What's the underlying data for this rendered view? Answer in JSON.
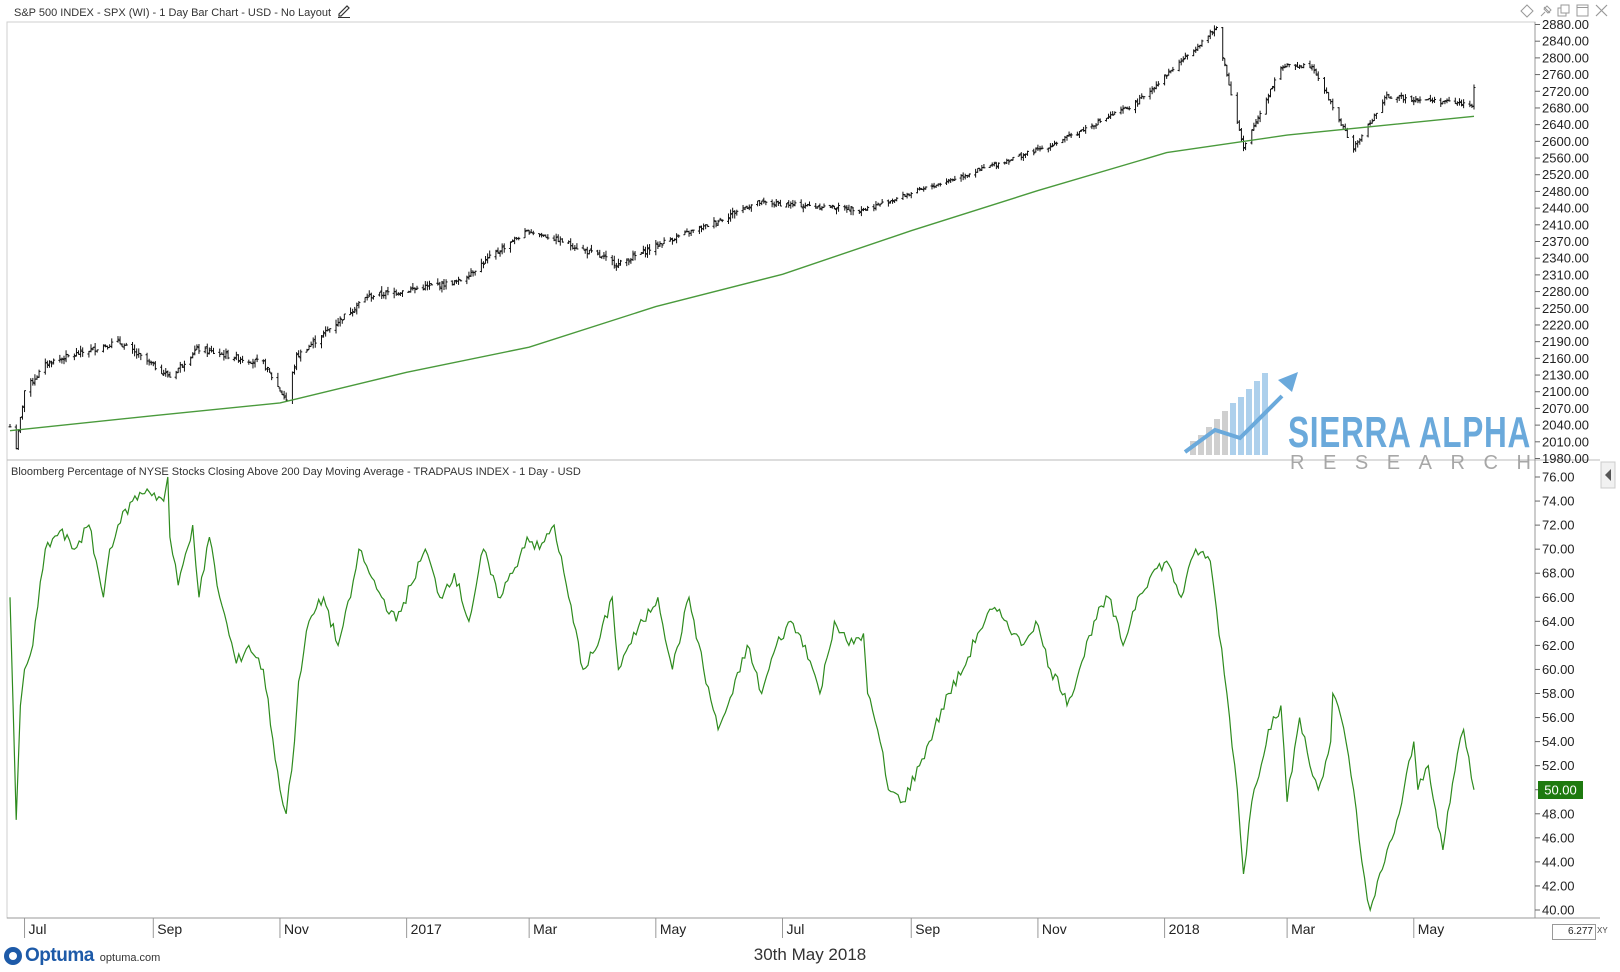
{
  "top_panel": {
    "title": "S&P 500 INDEX - SPX (WI) - 1 Day Bar Chart - USD - No Layout",
    "edit_icon": "pencil-icon"
  },
  "bottom_panel": {
    "title": "Bloomberg Percentage of NYSE Stocks Closing Above 200 Day Moving Average - TRADPAUS INDEX - 1 Day - USD",
    "last_value_label": "50.00"
  },
  "footer": {
    "date": "30th May 2018",
    "brand": "Optuma",
    "site": "optuma.com",
    "zoom_value": "6.277",
    "xy_label": "XY"
  },
  "watermark": {
    "line1": "SIERRA ALPHA",
    "line2": "RESEARCH"
  },
  "toolbar_icons": [
    "diamond-icon",
    "pin-icon",
    "restore-icon",
    "maximize-icon",
    "close-icon"
  ],
  "colors": {
    "price_bars": "#111111",
    "ma200": "#4a9a3c",
    "breadth": "#2e8b1e",
    "last_value_bg": "#1e7a0f",
    "watermark_blue": "#5aa0d8",
    "watermark_gray": "#9e9e9e"
  },
  "chart_data": [
    {
      "type": "ohlc",
      "title": "S&P 500 INDEX - SPX (WI) - 1 Day Bar Chart - USD - No Layout",
      "x_tick_labels": [
        "Jul",
        "Sep",
        "Nov",
        "2017",
        "Mar",
        "May",
        "Jul",
        "Sep",
        "Nov",
        "2018",
        "Mar",
        "May"
      ],
      "y_tick_labels": [
        "1980.00",
        "2010.00",
        "2040.00",
        "2070.00",
        "2100.00",
        "2130.00",
        "2160.00",
        "2190.00",
        "2220.00",
        "2250.00",
        "2280.00",
        "2310.00",
        "2340.00",
        "2370.00",
        "2410.00",
        "2440.00",
        "2480.00",
        "2520.00",
        "2560.00",
        "2600.00",
        "2640.00",
        "2680.00",
        "2720.00",
        "2760.00",
        "2800.00",
        "2840.00",
        "2880.00"
      ],
      "ylim": [
        1980,
        2880
      ],
      "price_close_anchors": {
        "dates": [
          "2016-06-24",
          "2016-06-27",
          "2016-07-01",
          "2016-07-12",
          "2016-08-15",
          "2016-09-09",
          "2016-09-22",
          "2016-10-24",
          "2016-11-04",
          "2016-11-09",
          "2016-12-13",
          "2017-01-26",
          "2017-03-01",
          "2017-04-13",
          "2017-06-19",
          "2017-08-10",
          "2017-09-20",
          "2017-11-07",
          "2017-12-18",
          "2018-01-26",
          "2018-02-08",
          "2018-02-26",
          "2018-03-13",
          "2018-04-02",
          "2018-04-18",
          "2018-05-29",
          "2018-05-30"
        ],
        "values": [
          2037,
          2000,
          2102,
          2152,
          2190,
          2127,
          2177,
          2151,
          2085,
          2163,
          2271,
          2298,
          2395,
          2329,
          2453,
          2438,
          2508,
          2590,
          2690,
          2872,
          2581,
          2779,
          2783,
          2582,
          2708,
          2689,
          2724
        ]
      },
      "series": [
        {
          "name": "200 Day Moving Average",
          "x": [
            "2016-06-24",
            "2016-09-01",
            "2016-11-01",
            "2017-01-01",
            "2017-03-01",
            "2017-05-01",
            "2017-07-01",
            "2017-09-01",
            "2017-11-01",
            "2018-01-02",
            "2018-03-01",
            "2018-05-30"
          ],
          "values": [
            2030,
            2057,
            2080,
            2135,
            2180,
            2253,
            2311,
            2396,
            2482,
            2573,
            2615,
            2660
          ]
        }
      ]
    },
    {
      "type": "line",
      "title": "Bloomberg Percentage of NYSE Stocks Closing Above 200 Day Moving Average - TRADPAUS INDEX - 1 Day - USD",
      "y_tick_labels": [
        "40.00",
        "42.00",
        "44.00",
        "46.00",
        "48.00",
        "50.00",
        "52.00",
        "54.00",
        "56.00",
        "58.00",
        "60.00",
        "62.00",
        "64.00",
        "66.00",
        "68.00",
        "70.00",
        "72.00",
        "74.00",
        "76.00"
      ],
      "ylim": [
        40,
        77
      ],
      "last_value": 50.0,
      "series": [
        {
          "name": "TRADPAUS INDEX",
          "x": [
            "2016-06-24",
            "2016-06-27",
            "2016-06-29",
            "2016-07-01",
            "2016-07-05",
            "2016-07-11",
            "2016-07-18",
            "2016-07-25",
            "2016-08-01",
            "2016-08-08",
            "2016-08-11",
            "2016-08-15",
            "2016-08-22",
            "2016-08-29",
            "2016-09-06",
            "2016-09-08",
            "2016-09-09",
            "2016-09-13",
            "2016-09-20",
            "2016-09-23",
            "2016-09-28",
            "2016-10-03",
            "2016-10-11",
            "2016-10-17",
            "2016-10-24",
            "2016-11-01",
            "2016-11-04",
            "2016-11-08",
            "2016-11-10",
            "2016-11-15",
            "2016-11-22",
            "2016-11-29",
            "2016-12-05",
            "2016-12-09",
            "2016-12-14",
            "2016-12-20",
            "2016-12-27",
            "2017-01-03",
            "2017-01-10",
            "2017-01-17",
            "2017-01-24",
            "2017-01-31",
            "2017-02-07",
            "2017-02-14",
            "2017-02-21",
            "2017-02-28",
            "2017-03-06",
            "2017-03-13",
            "2017-03-20",
            "2017-03-27",
            "2017-04-03",
            "2017-04-10",
            "2017-04-13",
            "2017-04-18",
            "2017-04-25",
            "2017-05-02",
            "2017-05-09",
            "2017-05-17",
            "2017-05-24",
            "2017-05-31",
            "2017-06-07",
            "2017-06-14",
            "2017-06-21",
            "2017-06-28",
            "2017-07-05",
            "2017-07-12",
            "2017-07-19",
            "2017-07-26",
            "2017-08-02",
            "2017-08-09",
            "2017-08-11",
            "2017-08-17",
            "2017-08-21",
            "2017-08-28",
            "2017-09-05",
            "2017-09-12",
            "2017-09-19",
            "2017-09-26",
            "2017-10-03",
            "2017-10-10",
            "2017-10-17",
            "2017-10-24",
            "2017-10-31",
            "2017-11-07",
            "2017-11-14",
            "2017-11-15",
            "2017-11-21",
            "2017-11-28",
            "2017-12-05",
            "2017-12-12",
            "2017-12-19",
            "2017-12-26",
            "2018-01-02",
            "2018-01-09",
            "2018-01-16",
            "2018-01-23",
            "2018-01-26",
            "2018-01-31",
            "2018-02-05",
            "2018-02-08",
            "2018-02-12",
            "2018-02-20",
            "2018-02-26",
            "2018-03-01",
            "2018-03-07",
            "2018-03-12",
            "2018-03-16",
            "2018-03-22",
            "2018-03-23",
            "2018-03-27",
            "2018-04-02",
            "2018-04-06",
            "2018-04-10",
            "2018-04-17",
            "2018-04-24",
            "2018-05-01",
            "2018-05-03",
            "2018-05-08",
            "2018-05-15",
            "2018-05-22",
            "2018-05-25",
            "2018-05-30"
          ],
          "values": [
            66,
            47.5,
            57,
            60,
            62,
            70,
            71.5,
            70,
            72,
            66,
            70,
            72,
            74,
            75,
            74,
            76,
            71,
            67,
            72,
            66,
            71,
            66,
            60.5,
            62,
            60,
            50,
            48,
            54,
            59,
            64,
            66,
            62,
            66,
            70,
            68,
            66,
            64,
            67,
            70,
            66,
            68,
            64,
            70,
            66,
            68,
            71,
            70,
            72,
            66,
            60,
            62,
            66,
            60,
            62,
            64,
            66,
            60,
            66,
            60,
            55,
            58,
            62,
            58,
            62,
            64,
            62,
            58,
            64,
            62,
            63,
            58,
            54,
            50,
            49,
            52,
            55,
            58,
            60,
            63,
            65,
            64,
            62,
            64,
            60,
            58,
            57,
            60,
            64,
            66,
            62,
            66,
            68,
            69,
            66,
            70,
            69,
            65,
            58,
            50,
            43,
            49,
            55,
            57,
            49,
            56,
            52,
            50,
            54,
            58,
            56,
            50,
            44,
            40,
            44,
            48,
            54,
            50,
            52,
            45,
            53,
            55,
            50
          ]
        }
      ]
    }
  ]
}
